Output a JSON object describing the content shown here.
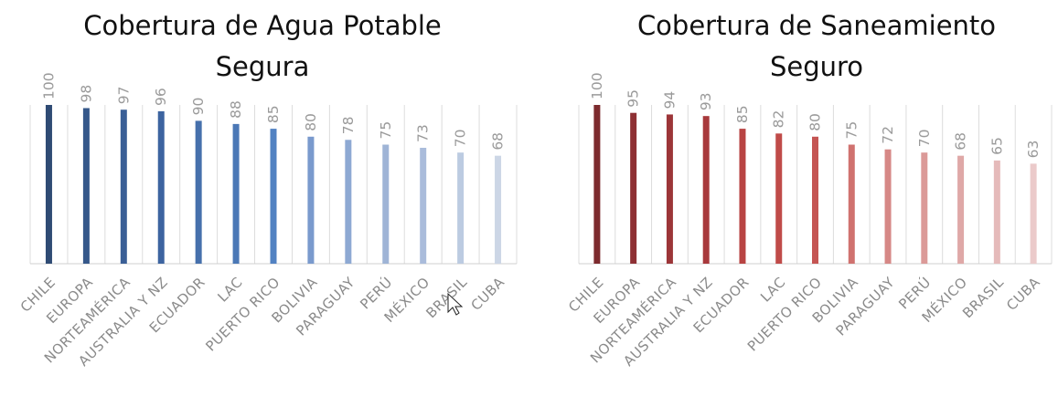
{
  "chart_data": [
    {
      "type": "bar",
      "title_lines": [
        "Cobertura de Agua Potable",
        "Segura"
      ],
      "categories": [
        "CHILE",
        "EUROPA",
        "NORTEAMÉRICA",
        "AUSTRALIA Y NZ",
        "ECUADOR",
        "LAC",
        "PUERTO RICO",
        "BOLIVIA",
        "PARAGUAY",
        "PERÚ",
        "MÉXICO",
        "BRASIL",
        "CUBA"
      ],
      "values": [
        100,
        98,
        97,
        96,
        90,
        88,
        85,
        80,
        78,
        75,
        73,
        70,
        68
      ],
      "ylim": [
        0,
        100
      ],
      "grid": "vertical",
      "bar_colors": [
        "#2f4b74",
        "#36588a",
        "#3a5f96",
        "#3d64a0",
        "#4670ac",
        "#4b78b6",
        "#5282c2",
        "#7a9acd",
        "#8ea9d3",
        "#9fb4d6",
        "#aabcdb",
        "#bccbe1",
        "#ccd6e6"
      ]
    },
    {
      "type": "bar",
      "title_lines": [
        "Cobertura de Saneamiento",
        "Seguro"
      ],
      "categories": [
        "CHILE",
        "EUROPA",
        "NORTEAMÉRICA",
        "AUSTRALIA Y NZ",
        "ECUADOR",
        "LAC",
        "PUERTO RICO",
        "BOLIVIA",
        "PARAGUAY",
        "PERÚ",
        "MÉXICO",
        "BRASIL",
        "CUBA"
      ],
      "values": [
        100,
        95,
        94,
        93,
        85,
        82,
        80,
        75,
        72,
        70,
        68,
        65,
        63
      ],
      "ylim": [
        0,
        100
      ],
      "grid": "vertical",
      "bar_colors": [
        "#7d2b2e",
        "#8e3034",
        "#9c3538",
        "#a8393c",
        "#b84443",
        "#c04b49",
        "#c55553",
        "#d0726f",
        "#d68886",
        "#db9a98",
        "#dfa8a7",
        "#e5baba",
        "#ebcaca"
      ]
    }
  ]
}
